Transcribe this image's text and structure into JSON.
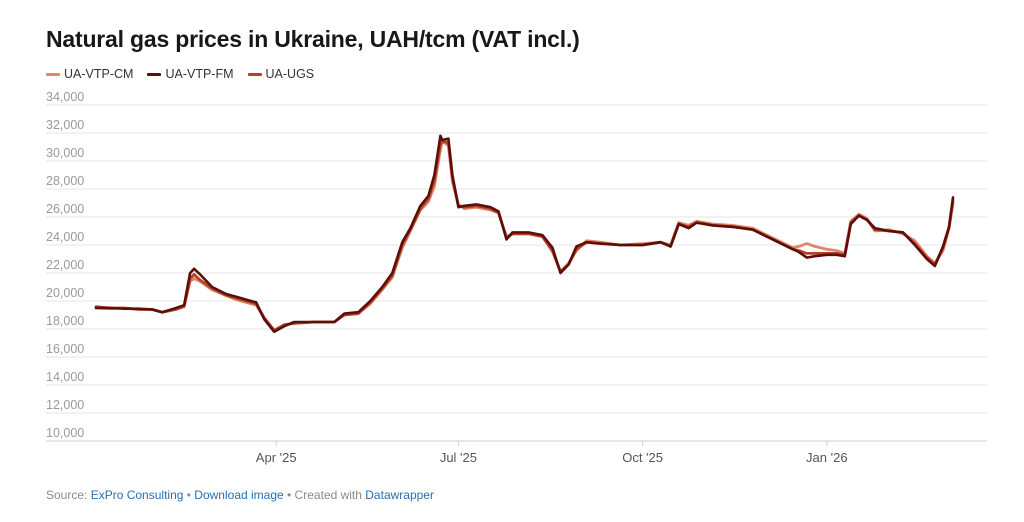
{
  "chart_data": {
    "type": "line",
    "title": "Natural gas prices in Ukraine, UAH/tcm (VAT incl.)",
    "ylim": [
      10000,
      34000
    ],
    "yticks": [
      "10,000",
      "12,000",
      "14,000",
      "16,000",
      "18,000",
      "20,000",
      "22,000",
      "24,000",
      "26,000",
      "28,000",
      "30,000",
      "32,000",
      "34,000"
    ],
    "ytick_values": [
      10000,
      12000,
      14000,
      16000,
      18000,
      20000,
      22000,
      24000,
      26000,
      28000,
      30000,
      32000,
      34000
    ],
    "xlim": [
      "2025-01-01",
      "2026-03-22"
    ],
    "xticks": [
      {
        "date": "2025-04-01",
        "label": "Apr '25"
      },
      {
        "date": "2025-07-01",
        "label": "Jul '25"
      },
      {
        "date": "2025-10-01",
        "label": "Oct '25"
      },
      {
        "date": "2026-01-01",
        "label": "Jan '26"
      }
    ],
    "grid": true,
    "legend_position": "top-left",
    "series": [
      {
        "name": "UA-VTP-CM",
        "color": "#e0866a",
        "points": [
          [
            "2025-01-01",
            19500
          ],
          [
            "2025-01-08",
            19450
          ],
          [
            "2025-01-15",
            19500
          ],
          [
            "2025-01-22",
            19400
          ],
          [
            "2025-01-29",
            19380
          ],
          [
            "2025-02-03",
            19200
          ],
          [
            "2025-02-10",
            19450
          ],
          [
            "2025-02-14",
            19600
          ],
          [
            "2025-02-17",
            21400
          ],
          [
            "2025-02-19",
            21600
          ],
          [
            "2025-02-22",
            21400
          ],
          [
            "2025-02-28",
            20800
          ],
          [
            "2025-03-07",
            20400
          ],
          [
            "2025-03-12",
            20100
          ],
          [
            "2025-03-17",
            19900
          ],
          [
            "2025-03-22",
            19700
          ],
          [
            "2025-03-26",
            18800
          ],
          [
            "2025-03-31",
            17900
          ],
          [
            "2025-04-05",
            18300
          ],
          [
            "2025-04-10",
            18400
          ],
          [
            "2025-04-20",
            18500
          ],
          [
            "2025-04-30",
            18500
          ],
          [
            "2025-05-05",
            19000
          ],
          [
            "2025-05-12",
            19100
          ],
          [
            "2025-05-18",
            19800
          ],
          [
            "2025-05-24",
            20800
          ],
          [
            "2025-05-29",
            21700
          ],
          [
            "2025-06-03",
            23800
          ],
          [
            "2025-06-07",
            25000
          ],
          [
            "2025-06-12",
            26500
          ],
          [
            "2025-06-16",
            27100
          ],
          [
            "2025-06-19",
            28200
          ],
          [
            "2025-06-22",
            30800
          ],
          [
            "2025-06-23",
            31400
          ],
          [
            "2025-06-26",
            31100
          ],
          [
            "2025-06-28",
            28500
          ],
          [
            "2025-07-01",
            26900
          ],
          [
            "2025-07-04",
            26600
          ],
          [
            "2025-07-10",
            26700
          ],
          [
            "2025-07-17",
            26500
          ],
          [
            "2025-07-21",
            26300
          ],
          [
            "2025-07-25",
            24600
          ],
          [
            "2025-07-28",
            24800
          ],
          [
            "2025-08-05",
            24800
          ],
          [
            "2025-08-12",
            24600
          ],
          [
            "2025-08-17",
            23500
          ],
          [
            "2025-08-21",
            22100
          ],
          [
            "2025-08-25",
            22700
          ],
          [
            "2025-08-29",
            23600
          ],
          [
            "2025-09-03",
            24300
          ],
          [
            "2025-09-10",
            24200
          ],
          [
            "2025-09-20",
            24000
          ],
          [
            "2025-10-01",
            24100
          ],
          [
            "2025-10-10",
            24200
          ],
          [
            "2025-10-15",
            24000
          ],
          [
            "2025-10-19",
            25600
          ],
          [
            "2025-10-24",
            25400
          ],
          [
            "2025-10-28",
            25700
          ],
          [
            "2025-11-05",
            25500
          ],
          [
            "2025-11-15",
            25400
          ],
          [
            "2025-11-25",
            25200
          ],
          [
            "2025-12-05",
            24500
          ],
          [
            "2025-12-15",
            23800
          ],
          [
            "2025-12-18",
            23900
          ],
          [
            "2025-12-22",
            24100
          ],
          [
            "2025-12-26",
            23900
          ],
          [
            "2026-01-01",
            23700
          ],
          [
            "2026-01-06",
            23600
          ],
          [
            "2026-01-10",
            23400
          ],
          [
            "2026-01-13",
            25700
          ],
          [
            "2026-01-17",
            26200
          ],
          [
            "2026-01-21",
            25900
          ],
          [
            "2026-01-25",
            25000
          ],
          [
            "2026-02-01",
            25100
          ],
          [
            "2026-02-08",
            24800
          ],
          [
            "2026-02-14",
            24300
          ],
          [
            "2026-02-20",
            23200
          ],
          [
            "2026-02-24",
            22700
          ],
          [
            "2026-02-28",
            23600
          ],
          [
            "2026-03-03",
            25200
          ],
          [
            "2026-03-05",
            27000
          ]
        ]
      },
      {
        "name": "UA-VTP-FM",
        "color": "#5c0f0a",
        "points": [
          [
            "2025-01-01",
            19500
          ],
          [
            "2025-01-08",
            19500
          ],
          [
            "2025-01-15",
            19450
          ],
          [
            "2025-01-22",
            19450
          ],
          [
            "2025-01-29",
            19400
          ],
          [
            "2025-02-03",
            19200
          ],
          [
            "2025-02-10",
            19500
          ],
          [
            "2025-02-14",
            19700
          ],
          [
            "2025-02-17",
            22000
          ],
          [
            "2025-02-19",
            22300
          ],
          [
            "2025-02-22",
            21900
          ],
          [
            "2025-02-28",
            21000
          ],
          [
            "2025-03-07",
            20500
          ],
          [
            "2025-03-12",
            20300
          ],
          [
            "2025-03-17",
            20100
          ],
          [
            "2025-03-22",
            19900
          ],
          [
            "2025-03-26",
            18700
          ],
          [
            "2025-03-31",
            17800
          ],
          [
            "2025-04-05",
            18200
          ],
          [
            "2025-04-10",
            18500
          ],
          [
            "2025-04-20",
            18500
          ],
          [
            "2025-04-30",
            18500
          ],
          [
            "2025-05-05",
            19100
          ],
          [
            "2025-05-12",
            19200
          ],
          [
            "2025-05-18",
            20000
          ],
          [
            "2025-05-24",
            21000
          ],
          [
            "2025-05-29",
            22000
          ],
          [
            "2025-06-03",
            24200
          ],
          [
            "2025-06-07",
            25200
          ],
          [
            "2025-06-12",
            26800
          ],
          [
            "2025-06-16",
            27500
          ],
          [
            "2025-06-19",
            29000
          ],
          [
            "2025-06-22",
            31800
          ],
          [
            "2025-06-23",
            31500
          ],
          [
            "2025-06-26",
            31600
          ],
          [
            "2025-06-28",
            29000
          ],
          [
            "2025-07-01",
            26700
          ],
          [
            "2025-07-04",
            26800
          ],
          [
            "2025-07-10",
            26900
          ],
          [
            "2025-07-17",
            26700
          ],
          [
            "2025-07-21",
            26400
          ],
          [
            "2025-07-25",
            24400
          ],
          [
            "2025-07-28",
            24900
          ],
          [
            "2025-08-05",
            24900
          ],
          [
            "2025-08-12",
            24700
          ],
          [
            "2025-08-17",
            23800
          ],
          [
            "2025-08-21",
            22000
          ],
          [
            "2025-08-25",
            22600
          ],
          [
            "2025-08-29",
            23900
          ],
          [
            "2025-09-03",
            24200
          ],
          [
            "2025-09-10",
            24100
          ],
          [
            "2025-09-20",
            24000
          ],
          [
            "2025-10-01",
            24000
          ],
          [
            "2025-10-10",
            24200
          ],
          [
            "2025-10-15",
            23900
          ],
          [
            "2025-10-19",
            25500
          ],
          [
            "2025-10-24",
            25200
          ],
          [
            "2025-10-28",
            25600
          ],
          [
            "2025-11-05",
            25400
          ],
          [
            "2025-11-15",
            25300
          ],
          [
            "2025-11-25",
            25100
          ],
          [
            "2025-12-05",
            24400
          ],
          [
            "2025-12-15",
            23700
          ],
          [
            "2025-12-18",
            23500
          ],
          [
            "2025-12-22",
            23100
          ],
          [
            "2025-12-26",
            23200
          ],
          [
            "2026-01-01",
            23300
          ],
          [
            "2026-01-06",
            23300
          ],
          [
            "2026-01-10",
            23200
          ],
          [
            "2026-01-13",
            25500
          ],
          [
            "2026-01-17",
            26100
          ],
          [
            "2026-01-21",
            25800
          ],
          [
            "2026-01-25",
            25200
          ],
          [
            "2026-02-01",
            25000
          ],
          [
            "2026-02-08",
            24900
          ],
          [
            "2026-02-14",
            24000
          ],
          [
            "2026-02-20",
            23000
          ],
          [
            "2026-02-24",
            22500
          ],
          [
            "2026-02-28",
            23900
          ],
          [
            "2026-03-03",
            25300
          ],
          [
            "2026-03-05",
            27400
          ]
        ]
      },
      {
        "name": "UA-UGS",
        "color": "#b5432a",
        "points": [
          [
            "2025-01-01",
            19600
          ],
          [
            "2025-01-08",
            19500
          ],
          [
            "2025-01-15",
            19500
          ],
          [
            "2025-01-22",
            19400
          ],
          [
            "2025-01-29",
            19400
          ],
          [
            "2025-02-03",
            19200
          ],
          [
            "2025-02-10",
            19400
          ],
          [
            "2025-02-14",
            19600
          ],
          [
            "2025-02-17",
            21600
          ],
          [
            "2025-02-19",
            21900
          ],
          [
            "2025-02-22",
            21500
          ],
          [
            "2025-02-28",
            20900
          ],
          [
            "2025-03-07",
            20400
          ],
          [
            "2025-03-12",
            20200
          ],
          [
            "2025-03-17",
            20000
          ],
          [
            "2025-03-22",
            19800
          ],
          [
            "2025-03-26",
            18800
          ],
          [
            "2025-03-31",
            17900
          ],
          [
            "2025-04-05",
            18300
          ],
          [
            "2025-04-10",
            18400
          ],
          [
            "2025-04-20",
            18500
          ],
          [
            "2025-04-30",
            18500
          ],
          [
            "2025-05-05",
            19000
          ],
          [
            "2025-05-12",
            19100
          ],
          [
            "2025-05-18",
            19900
          ],
          [
            "2025-05-24",
            20900
          ],
          [
            "2025-05-29",
            21800
          ],
          [
            "2025-06-03",
            24000
          ],
          [
            "2025-06-07",
            25100
          ],
          [
            "2025-06-12",
            26600
          ],
          [
            "2025-06-16",
            27300
          ],
          [
            "2025-06-19",
            28600
          ],
          [
            "2025-06-22",
            31200
          ],
          [
            "2025-06-23",
            31400
          ],
          [
            "2025-06-26",
            31300
          ],
          [
            "2025-06-28",
            28800
          ],
          [
            "2025-07-01",
            26800
          ],
          [
            "2025-07-04",
            26700
          ],
          [
            "2025-07-10",
            26800
          ],
          [
            "2025-07-17",
            26600
          ],
          [
            "2025-07-21",
            26300
          ],
          [
            "2025-07-25",
            24500
          ],
          [
            "2025-07-28",
            24800
          ],
          [
            "2025-08-05",
            24800
          ],
          [
            "2025-08-12",
            24600
          ],
          [
            "2025-08-17",
            23600
          ],
          [
            "2025-08-21",
            22100
          ],
          [
            "2025-08-25",
            22600
          ],
          [
            "2025-08-29",
            23700
          ],
          [
            "2025-09-03",
            24200
          ],
          [
            "2025-09-10",
            24100
          ],
          [
            "2025-09-20",
            24000
          ],
          [
            "2025-10-01",
            24000
          ],
          [
            "2025-10-10",
            24200
          ],
          [
            "2025-10-15",
            23900
          ],
          [
            "2025-10-19",
            25500
          ],
          [
            "2025-10-24",
            25300
          ],
          [
            "2025-10-28",
            25600
          ],
          [
            "2025-11-05",
            25400
          ],
          [
            "2025-11-15",
            25300
          ],
          [
            "2025-11-25",
            25100
          ],
          [
            "2025-12-05",
            24400
          ],
          [
            "2025-12-15",
            23700
          ],
          [
            "2025-12-18",
            23600
          ],
          [
            "2025-12-22",
            23400
          ],
          [
            "2025-12-26",
            23400
          ],
          [
            "2026-01-01",
            23400
          ],
          [
            "2026-01-06",
            23400
          ],
          [
            "2026-01-10",
            23300
          ],
          [
            "2026-01-13",
            25600
          ],
          [
            "2026-01-17",
            26100
          ],
          [
            "2026-01-21",
            25800
          ],
          [
            "2026-01-25",
            25100
          ],
          [
            "2026-02-01",
            25000
          ],
          [
            "2026-02-08",
            24900
          ],
          [
            "2026-02-14",
            24100
          ],
          [
            "2026-02-20",
            23100
          ],
          [
            "2026-02-24",
            22600
          ],
          [
            "2026-02-28",
            23800
          ],
          [
            "2026-03-03",
            25200
          ],
          [
            "2026-03-05",
            27200
          ]
        ]
      }
    ]
  },
  "footer": {
    "source_label": "Source: ",
    "source_link": "ExPro Consulting",
    "sep1": " • ",
    "download_link": "Download image",
    "sep2": " • Created with ",
    "tool_link": "Datawrapper"
  },
  "colors": {
    "grid": "#e4e4e4",
    "axis_text": "#9a9a9a",
    "link": "#2a6fb0"
  }
}
